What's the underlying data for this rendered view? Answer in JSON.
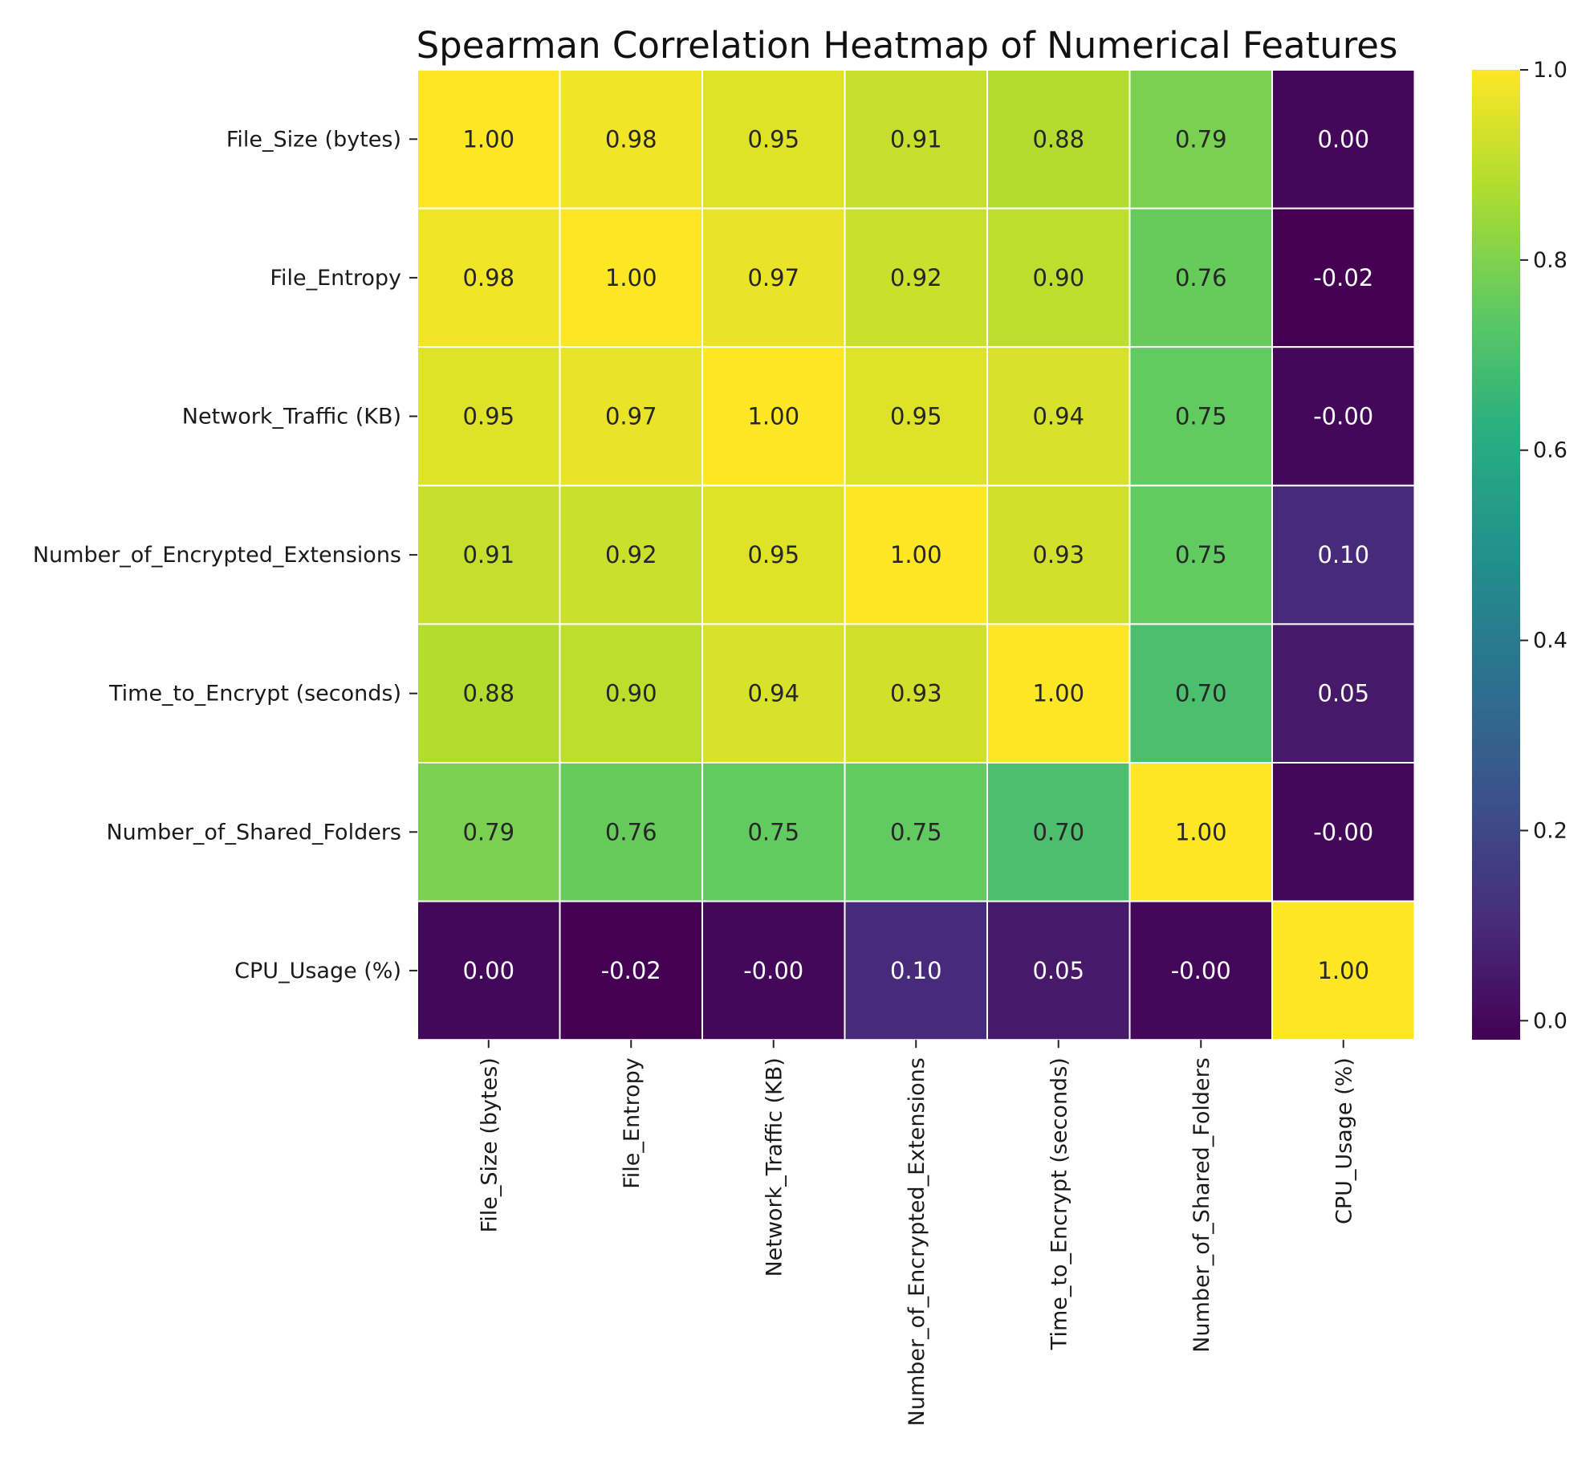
{
  "chart_data": {
    "type": "heatmap",
    "title": "Spearman Correlation Heatmap of Numerical Features",
    "xlabel": "",
    "ylabel": "",
    "labels": [
      "File_Size (bytes)",
      "File_Entropy",
      "Network_Traffic (KB)",
      "Number_of_Encrypted_Extensions",
      "Time_to_Encrypt (seconds)",
      "Number_of_Shared_Folders",
      "CPU_Usage (%)"
    ],
    "values": [
      [
        1.0,
        0.98,
        0.95,
        0.91,
        0.88,
        0.79,
        0.0
      ],
      [
        0.98,
        1.0,
        0.97,
        0.92,
        0.9,
        0.76,
        -0.02
      ],
      [
        0.95,
        0.97,
        1.0,
        0.95,
        0.94,
        0.75,
        -0.0
      ],
      [
        0.91,
        0.92,
        0.95,
        1.0,
        0.93,
        0.75,
        0.1
      ],
      [
        0.88,
        0.9,
        0.94,
        0.93,
        1.0,
        0.7,
        0.05
      ],
      [
        0.79,
        0.76,
        0.75,
        0.75,
        0.7,
        1.0,
        -0.0
      ],
      [
        0.0,
        -0.02,
        -0.0,
        0.1,
        0.05,
        -0.0,
        1.0
      ]
    ],
    "annotations": [
      [
        "1.00",
        "0.98",
        "0.95",
        "0.91",
        "0.88",
        "0.79",
        "0.00"
      ],
      [
        "0.98",
        "1.00",
        "0.97",
        "0.92",
        "0.90",
        "0.76",
        "-0.02"
      ],
      [
        "0.95",
        "0.97",
        "1.00",
        "0.95",
        "0.94",
        "0.75",
        "-0.00"
      ],
      [
        "0.91",
        "0.92",
        "0.95",
        "1.00",
        "0.93",
        "0.75",
        "0.10"
      ],
      [
        "0.88",
        "0.90",
        "0.94",
        "0.93",
        "1.00",
        "0.70",
        "0.05"
      ],
      [
        "0.79",
        "0.76",
        "0.75",
        "0.75",
        "0.70",
        "1.00",
        "-0.00"
      ],
      [
        "0.00",
        "-0.02",
        "-0.00",
        "0.10",
        "0.05",
        "-0.00",
        "1.00"
      ]
    ],
    "colormap": "viridis",
    "vmin": -0.02,
    "vmax": 1.0,
    "colorbar": {
      "ticks": [
        0.0,
        0.2,
        0.4,
        0.6,
        0.8,
        1.0
      ],
      "tick_labels": [
        "0.0",
        "0.2",
        "0.4",
        "0.6",
        "0.8",
        "1.0"
      ],
      "placement": "right"
    },
    "grid": false,
    "cell_border_color": "#ffffff"
  }
}
